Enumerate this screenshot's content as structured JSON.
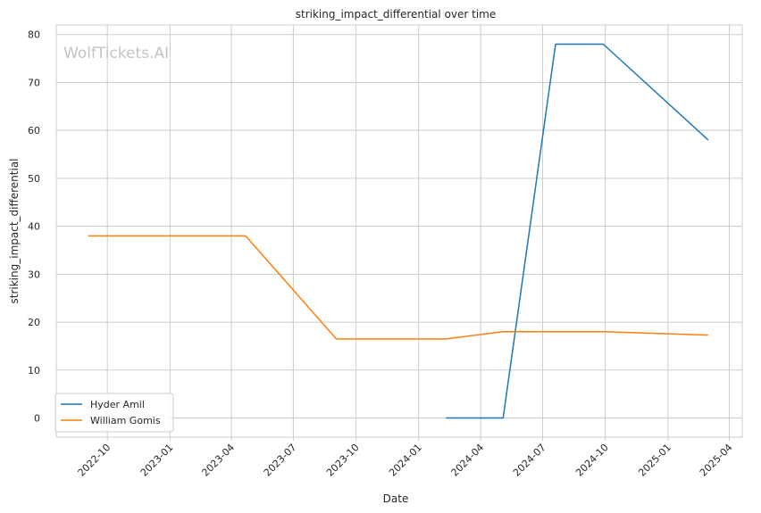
{
  "chart_data": {
    "type": "line",
    "title": "striking_impact_differential over time",
    "xlabel": "Date",
    "ylabel": "striking_impact_differential",
    "watermark": "WolfTickets.AI",
    "x_ticks": [
      "2022-10",
      "2023-01",
      "2023-04",
      "2023-07",
      "2023-10",
      "2024-01",
      "2024-04",
      "2024-07",
      "2024-10",
      "2025-01",
      "2025-04"
    ],
    "y_ticks": [
      0,
      10,
      20,
      30,
      40,
      50,
      60,
      70,
      80
    ],
    "xlim": [
      "2022-07-18",
      "2025-04-20"
    ],
    "ylim": [
      -4,
      82
    ],
    "grid": true,
    "legend_position": "lower-left",
    "series": [
      {
        "name": "Hyder Amil",
        "color": "#1f77b4",
        "points": [
          {
            "x": "2024-02-10",
            "y": 0
          },
          {
            "x": "2024-05-04",
            "y": 0
          },
          {
            "x": "2024-07-20",
            "y": 78
          },
          {
            "x": "2024-09-28",
            "y": 78
          },
          {
            "x": "2025-03-01",
            "y": 58
          }
        ]
      },
      {
        "name": "William Gomis",
        "color": "#ff7f0e",
        "points": [
          {
            "x": "2022-09-03",
            "y": 38
          },
          {
            "x": "2023-04-22",
            "y": 38
          },
          {
            "x": "2023-09-02",
            "y": 16.5
          },
          {
            "x": "2024-02-10",
            "y": 16.5
          },
          {
            "x": "2024-05-04",
            "y": 18
          },
          {
            "x": "2024-09-28",
            "y": 18
          },
          {
            "x": "2025-03-01",
            "y": 17.3
          }
        ]
      }
    ]
  }
}
